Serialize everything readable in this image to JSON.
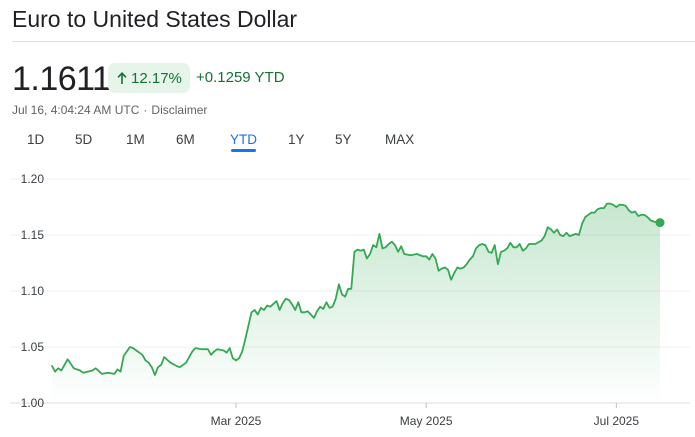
{
  "header": {
    "title": "Euro to United States Dollar",
    "price": "1.1611",
    "percent_change": "12.17%",
    "absolute_change": "+0.1259 YTD",
    "timestamp": "Jul 16, 4:04:24 AM UTC",
    "separator": "·",
    "disclaimer": "Disclaimer",
    "arrow_icon": "arrow-up-icon"
  },
  "tabs": [
    {
      "label": "1D",
      "active": false
    },
    {
      "label": "5D",
      "active": false
    },
    {
      "label": "1M",
      "active": false
    },
    {
      "label": "6M",
      "active": false
    },
    {
      "label": "YTD",
      "active": true
    },
    {
      "label": "1Y",
      "active": false
    },
    {
      "label": "5Y",
      "active": false
    },
    {
      "label": "MAX",
      "active": false
    }
  ],
  "colors": {
    "line": "#34a853",
    "positive_text": "#137333",
    "positive_badge": "#e6f4ea",
    "active_tab": "#1a73e8",
    "grid": "#e8eaed"
  },
  "chart_data": {
    "type": "area",
    "title": "",
    "xlabel": "",
    "ylabel": "",
    "ylim": [
      1.0,
      1.2
    ],
    "yticks": [
      "1.20",
      "1.15",
      "1.10",
      "1.05",
      "1.00"
    ],
    "xticks": [
      {
        "label": "Mar 2025",
        "day": 59
      },
      {
        "label": "May 2025",
        "day": 120
      },
      {
        "label": "Jul 2025",
        "day": 181
      }
    ],
    "x_start": "2025-01-01",
    "x_end": "2025-07-16",
    "grid": true,
    "end_marker": true,
    "series": [
      {
        "values": [
          [
            0,
            1.033
          ],
          [
            1,
            1.028
          ],
          [
            2,
            1.031
          ],
          [
            3,
            1.029
          ],
          [
            5,
            1.039
          ],
          [
            7,
            1.031
          ],
          [
            9,
            1.029
          ],
          [
            10,
            1.027
          ],
          [
            13,
            1.029
          ],
          [
            14,
            1.031
          ],
          [
            16,
            1.026
          ],
          [
            18,
            1.027
          ],
          [
            20,
            1.026
          ],
          [
            21,
            1.03
          ],
          [
            22,
            1.028
          ],
          [
            23,
            1.042
          ],
          [
            24,
            1.046
          ],
          [
            25,
            1.05
          ],
          [
            26,
            1.049
          ],
          [
            27,
            1.047
          ],
          [
            29,
            1.043
          ],
          [
            30,
            1.038
          ],
          [
            31,
            1.036
          ],
          [
            32,
            1.032
          ],
          [
            33,
            1.025
          ],
          [
            34,
            1.032
          ],
          [
            35,
            1.034
          ],
          [
            36,
            1.041
          ],
          [
            38,
            1.036
          ],
          [
            40,
            1.033
          ],
          [
            41,
            1.032
          ],
          [
            43,
            1.036
          ],
          [
            45,
            1.046
          ],
          [
            46,
            1.049
          ],
          [
            48,
            1.048
          ],
          [
            50,
            1.048
          ],
          [
            51,
            1.043
          ],
          [
            52,
            1.046
          ],
          [
            53,
            1.048
          ],
          [
            55,
            1.047
          ],
          [
            56,
            1.045
          ],
          [
            57,
            1.049
          ],
          [
            58,
            1.04
          ],
          [
            59,
            1.038
          ],
          [
            60,
            1.04
          ],
          [
            61,
            1.046
          ],
          [
            62,
            1.057
          ],
          [
            64,
            1.081
          ],
          [
            65,
            1.083
          ],
          [
            66,
            1.079
          ],
          [
            67,
            1.085
          ],
          [
            68,
            1.083
          ],
          [
            69,
            1.087
          ],
          [
            70,
            1.086
          ],
          [
            72,
            1.091
          ],
          [
            73,
            1.083
          ],
          [
            74,
            1.089
          ],
          [
            75,
            1.093
          ],
          [
            76,
            1.092
          ],
          [
            77,
            1.088
          ],
          [
            78,
            1.083
          ],
          [
            79,
            1.09
          ],
          [
            80,
            1.081
          ],
          [
            81,
            1.081
          ],
          [
            82,
            1.082
          ],
          [
            83,
            1.079
          ],
          [
            84,
            1.076
          ],
          [
            85,
            1.082
          ],
          [
            86,
            1.086
          ],
          [
            87,
            1.084
          ],
          [
            88,
            1.09
          ],
          [
            89,
            1.085
          ],
          [
            90,
            1.086
          ],
          [
            91,
            1.093
          ],
          [
            92,
            1.106
          ],
          [
            93,
            1.097
          ],
          [
            94,
            1.095
          ],
          [
            95,
            1.102
          ],
          [
            96,
            1.102
          ],
          [
            97,
            1.135
          ],
          [
            98,
            1.137
          ],
          [
            99,
            1.136
          ],
          [
            100,
            1.137
          ],
          [
            101,
            1.129
          ],
          [
            102,
            1.133
          ],
          [
            103,
            1.141
          ],
          [
            104,
            1.139
          ],
          [
            105,
            1.151
          ],
          [
            106,
            1.138
          ],
          [
            107,
            1.139
          ],
          [
            108,
            1.142
          ],
          [
            109,
            1.144
          ],
          [
            110,
            1.141
          ],
          [
            111,
            1.135
          ],
          [
            112,
            1.14
          ],
          [
            113,
            1.133
          ],
          [
            115,
            1.132
          ],
          [
            117,
            1.133
          ],
          [
            119,
            1.131
          ],
          [
            120,
            1.131
          ],
          [
            121,
            1.128
          ],
          [
            122,
            1.133
          ],
          [
            123,
            1.129
          ],
          [
            124,
            1.118
          ],
          [
            125,
            1.12
          ],
          [
            126,
            1.121
          ],
          [
            127,
            1.119
          ],
          [
            128,
            1.11
          ],
          [
            129,
            1.116
          ],
          [
            130,
            1.121
          ],
          [
            131,
            1.12
          ],
          [
            132,
            1.121
          ],
          [
            133,
            1.124
          ],
          [
            134,
            1.128
          ],
          [
            135,
            1.131
          ],
          [
            136,
            1.138
          ],
          [
            137,
            1.141
          ],
          [
            138,
            1.142
          ],
          [
            139,
            1.141
          ],
          [
            140,
            1.135
          ],
          [
            141,
            1.134
          ],
          [
            142,
            1.141
          ],
          [
            143,
            1.124
          ],
          [
            144,
            1.135
          ],
          [
            145,
            1.136
          ],
          [
            146,
            1.138
          ],
          [
            147,
            1.143
          ],
          [
            148,
            1.139
          ],
          [
            149,
            1.139
          ],
          [
            150,
            1.142
          ],
          [
            151,
            1.136
          ],
          [
            152,
            1.138
          ],
          [
            153,
            1.142
          ],
          [
            155,
            1.142
          ],
          [
            157,
            1.145
          ],
          [
            158,
            1.149
          ],
          [
            159,
            1.157
          ],
          [
            160,
            1.155
          ],
          [
            161,
            1.152
          ],
          [
            162,
            1.155
          ],
          [
            163,
            1.15
          ],
          [
            164,
            1.149
          ],
          [
            165,
            1.152
          ],
          [
            166,
            1.149
          ],
          [
            167,
            1.15
          ],
          [
            168,
            1.151
          ],
          [
            169,
            1.15
          ],
          [
            170,
            1.16
          ],
          [
            171,
            1.166
          ],
          [
            172,
            1.168
          ],
          [
            173,
            1.17
          ],
          [
            174,
            1.17
          ],
          [
            175,
            1.173
          ],
          [
            176,
            1.174
          ],
          [
            177,
            1.174
          ],
          [
            178,
            1.178
          ],
          [
            179,
            1.178
          ],
          [
            180,
            1.177
          ],
          [
            181,
            1.175
          ],
          [
            182,
            1.177
          ],
          [
            183,
            1.177
          ],
          [
            184,
            1.176
          ],
          [
            185,
            1.172
          ],
          [
            186,
            1.17
          ],
          [
            187,
            1.171
          ],
          [
            188,
            1.167
          ],
          [
            189,
            1.168
          ],
          [
            190,
            1.168
          ],
          [
            191,
            1.166
          ],
          [
            192,
            1.163
          ],
          [
            193,
            1.162
          ],
          [
            195,
            1.1611
          ]
        ]
      }
    ]
  }
}
